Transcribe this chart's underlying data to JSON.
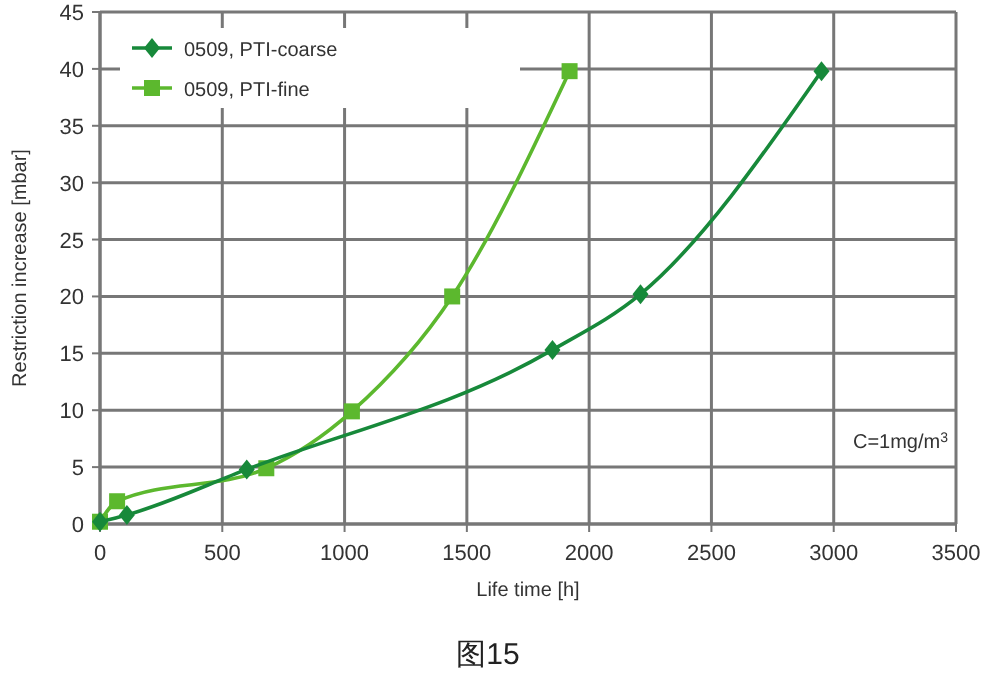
{
  "chart_data": {
    "type": "line",
    "xlabel": "Life time [h]",
    "ylabel": "Restriction increase [mbar]",
    "annotations": [
      "C=1mg/m$^{3}$",
      "图15"
    ],
    "series": [
      {
        "name": "0509, PTI-coarse",
        "color": "#17893a",
        "marker": "diamond",
        "x": [
          0,
          110,
          600,
          1850,
          2210,
          2950
        ],
        "values": [
          0.2,
          0.8,
          4.8,
          15.3,
          20.2,
          39.8
        ]
      },
      {
        "name": "0509, PTI-fine",
        "color": "#5cb82e",
        "marker": "square",
        "x": [
          0,
          70,
          680,
          1030,
          1440,
          1920
        ],
        "values": [
          0.2,
          2,
          4.9,
          9.9,
          20,
          39.8
        ]
      }
    ],
    "xlim": [
      0,
      3500
    ],
    "xticks": [
      0,
      500,
      1000,
      1500,
      2000,
      2500,
      3000,
      3500
    ],
    "ylim": [
      0,
      45
    ],
    "yticks": [
      0,
      5,
      10,
      15,
      20,
      25,
      30,
      35,
      40,
      45
    ],
    "grid": true,
    "legend": "top left"
  }
}
